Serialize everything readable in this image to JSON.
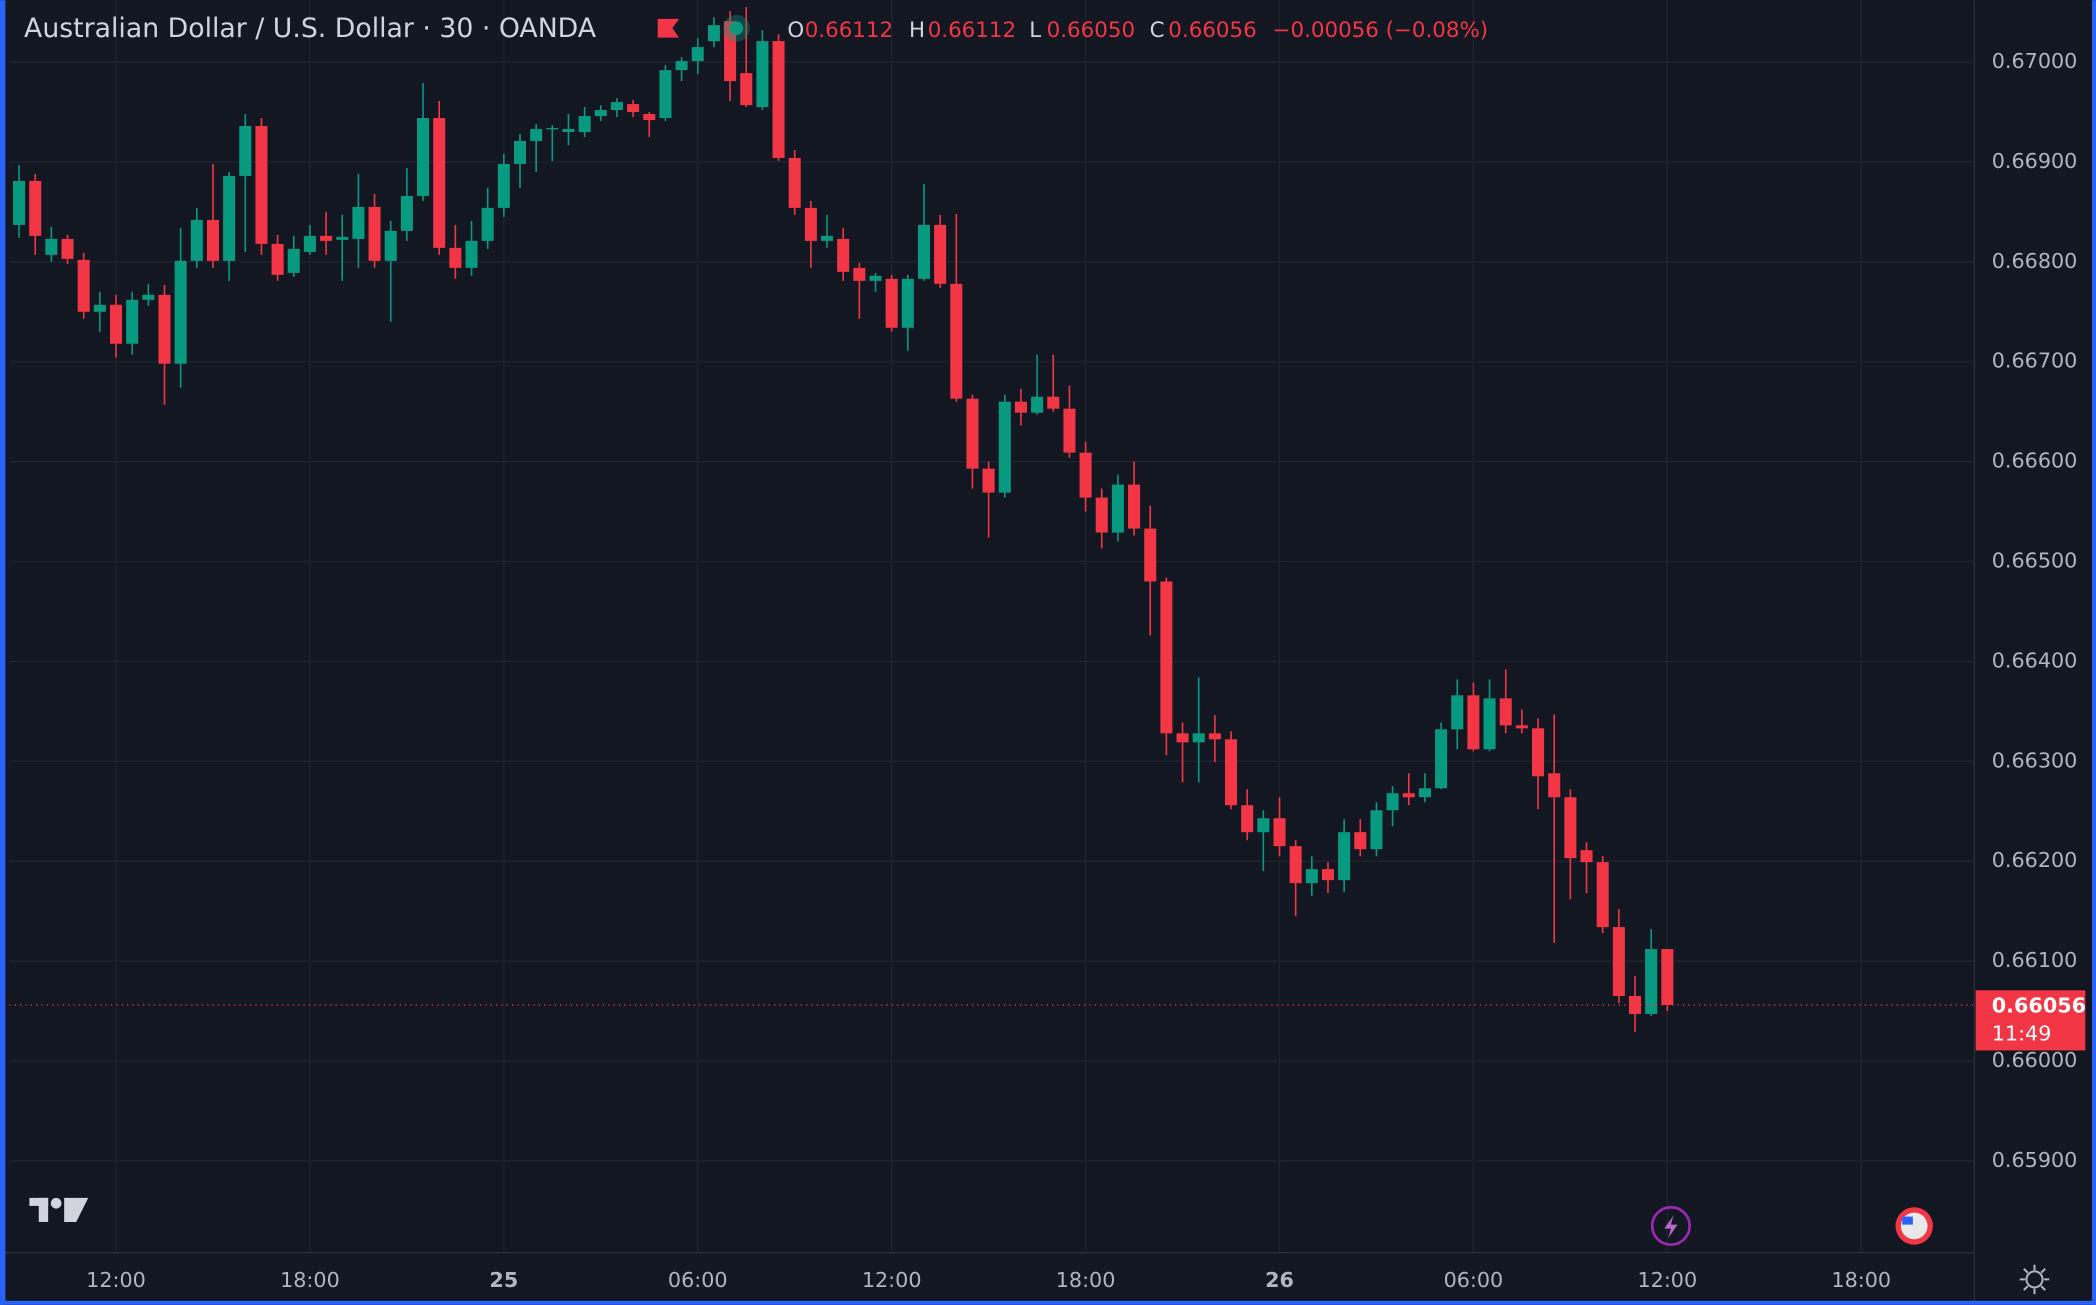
{
  "chart_data": {
    "type": "candlestick",
    "title": "Australian Dollar / U.S. Dollar · 30 · OANDA",
    "legend": {
      "o_key": "O",
      "o": "0.66112",
      "h_key": "H",
      "h": "0.66112",
      "l_key": "L",
      "l": "0.66050",
      "c_key": "C",
      "c": "0.66056",
      "change": "−0.00056 (−0.08%)"
    },
    "countdown": "11:49",
    "up_color": "#089981",
    "down_color": "#f23645",
    "grid": true,
    "xlim": [
      -0.6,
      121
    ],
    "xticks": [
      {
        "value": 6,
        "label": "12:00"
      },
      {
        "value": 18,
        "label": "18:00"
      },
      {
        "value": 30,
        "label": "25"
      },
      {
        "value": 42,
        "label": "06:00"
      },
      {
        "value": 54,
        "label": "12:00"
      },
      {
        "value": 66,
        "label": "18:00"
      },
      {
        "value": 78,
        "label": "26"
      },
      {
        "value": 90,
        "label": "06:00"
      },
      {
        "value": 102,
        "label": "12:00"
      },
      {
        "value": 114,
        "label": "18:00"
      }
    ],
    "ylim": [
      0.65808,
      0.67062
    ],
    "yticks": [
      {
        "value": 0.659,
        "label": "0.65900"
      },
      {
        "value": 0.66,
        "label": "0.66000"
      },
      {
        "value": 0.661,
        "label": "0.66100"
      },
      {
        "value": 0.662,
        "label": "0.66200"
      },
      {
        "value": 0.663,
        "label": "0.66300"
      },
      {
        "value": 0.664,
        "label": "0.66400"
      },
      {
        "value": 0.665,
        "label": "0.66500"
      },
      {
        "value": 0.666,
        "label": "0.66600"
      },
      {
        "value": 0.667,
        "label": "0.66700"
      },
      {
        "value": 0.668,
        "label": "0.66800"
      },
      {
        "value": 0.669,
        "label": "0.66900"
      },
      {
        "value": 0.67,
        "label": "0.67000"
      }
    ],
    "open": [
      0.66837,
      0.66881,
      0.66807,
      0.66823,
      0.66802,
      0.6675,
      0.66757,
      0.66718,
      0.66762,
      0.66767,
      0.66698,
      0.66801,
      0.66842,
      0.66801,
      0.66886,
      0.66936,
      0.66818,
      0.66789,
      0.6681,
      0.66826,
      0.66822,
      0.66823,
      0.66855,
      0.66801,
      0.66831,
      0.66866,
      0.66944,
      0.66814,
      0.66794,
      0.66821,
      0.66854,
      0.66898,
      0.66921,
      0.66933,
      0.6693,
      0.6693,
      0.66946,
      0.66952,
      0.66958,
      0.66948,
      0.66944,
      0.66992,
      0.67001,
      0.67021,
      0.67041,
      0.66989,
      0.66955,
      0.67021,
      0.66904,
      0.66854,
      0.66821,
      0.66823,
      0.66794,
      0.66781,
      0.66783,
      0.66734,
      0.66783,
      0.66837,
      0.66778,
      0.66663,
      0.66593,
      0.66569,
      0.6666,
      0.66649,
      0.66665,
      0.66653,
      0.66609,
      0.66564,
      0.66529,
      0.66577,
      0.66533,
      0.6648,
      0.66328,
      0.66319,
      0.66328,
      0.66322,
      0.66256,
      0.66229,
      0.66243,
      0.66215,
      0.66178,
      0.66192,
      0.66181,
      0.66229,
      0.66212,
      0.66251,
      0.66268,
      0.66264,
      0.66273,
      0.66332,
      0.66366,
      0.66312,
      0.66363,
      0.66336,
      0.66333,
      0.66288,
      0.66264,
      0.66211,
      0.66199,
      0.66134,
      0.66065,
      0.66047,
      0.66112
    ],
    "high": [
      0.66897,
      0.66888,
      0.66835,
      0.66827,
      0.66809,
      0.6677,
      0.66767,
      0.6677,
      0.66778,
      0.66777,
      0.66834,
      0.66854,
      0.66898,
      0.6689,
      0.66948,
      0.66944,
      0.66827,
      0.66826,
      0.66837,
      0.6685,
      0.66847,
      0.66888,
      0.66868,
      0.66841,
      0.66894,
      0.66979,
      0.66961,
      0.66837,
      0.66841,
      0.66874,
      0.66908,
      0.66928,
      0.66938,
      0.66937,
      0.66948,
      0.66955,
      0.66957,
      0.66964,
      0.66962,
      0.6695,
      0.66997,
      0.67005,
      0.67024,
      0.67045,
      0.67051,
      0.67055,
      0.67032,
      0.67028,
      0.66912,
      0.66861,
      0.66847,
      0.66834,
      0.66799,
      0.66789,
      0.66787,
      0.66787,
      0.66878,
      0.66847,
      0.66848,
      0.66667,
      0.666,
      0.66667,
      0.66673,
      0.66707,
      0.66707,
      0.66676,
      0.6662,
      0.66573,
      0.66587,
      0.666,
      0.66556,
      0.66484,
      0.66339,
      0.66384,
      0.66346,
      0.6633,
      0.66272,
      0.66251,
      0.66264,
      0.66221,
      0.66205,
      0.66199,
      0.66242,
      0.66242,
      0.66259,
      0.66275,
      0.66288,
      0.66288,
      0.66339,
      0.66382,
      0.66379,
      0.66382,
      0.66392,
      0.66352,
      0.66343,
      0.66347,
      0.66272,
      0.66219,
      0.66205,
      0.66152,
      0.66085,
      0.66132,
      0.66112
    ],
    "low": [
      0.66824,
      0.66807,
      0.668,
      0.66798,
      0.66743,
      0.6673,
      0.66704,
      0.66707,
      0.66756,
      0.66657,
      0.66674,
      0.66794,
      0.66794,
      0.66781,
      0.6681,
      0.66807,
      0.66781,
      0.66785,
      0.66807,
      0.66807,
      0.66781,
      0.66794,
      0.66794,
      0.6674,
      0.66821,
      0.66861,
      0.66807,
      0.66783,
      0.66786,
      0.66813,
      0.66845,
      0.66874,
      0.6689,
      0.66901,
      0.66917,
      0.66925,
      0.66941,
      0.66945,
      0.66945,
      0.66925,
      0.66941,
      0.66981,
      0.66988,
      0.67015,
      0.66961,
      0.66955,
      0.66952,
      0.66901,
      0.66847,
      0.66794,
      0.66814,
      0.66781,
      0.66743,
      0.6677,
      0.6673,
      0.66711,
      0.66781,
      0.66774,
      0.6666,
      0.66573,
      0.66524,
      0.66564,
      0.66636,
      0.66647,
      0.6665,
      0.66604,
      0.6655,
      0.66513,
      0.6652,
      0.66526,
      0.66426,
      0.66306,
      0.66279,
      0.66279,
      0.66299,
      0.66252,
      0.66221,
      0.6619,
      0.66205,
      0.66145,
      0.66165,
      0.66168,
      0.66169,
      0.66205,
      0.66205,
      0.66235,
      0.66256,
      0.66259,
      0.66272,
      0.66312,
      0.6631,
      0.6631,
      0.66328,
      0.66328,
      0.66252,
      0.66118,
      0.66162,
      0.66168,
      0.66128,
      0.66058,
      0.66029,
      0.66045,
      0.6605
    ],
    "close": [
      0.66881,
      0.66826,
      0.66823,
      0.66803,
      0.6675,
      0.66757,
      0.66718,
      0.66762,
      0.66767,
      0.66698,
      0.66801,
      0.66842,
      0.66801,
      0.66886,
      0.66936,
      0.66818,
      0.66787,
      0.66813,
      0.66826,
      0.66821,
      0.66825,
      0.66855,
      0.66801,
      0.66831,
      0.66866,
      0.66944,
      0.66814,
      0.66794,
      0.66821,
      0.66854,
      0.66898,
      0.66921,
      0.66933,
      0.66934,
      0.66933,
      0.66946,
      0.66952,
      0.6696,
      0.6695,
      0.66942,
      0.66992,
      0.67001,
      0.67015,
      0.67037,
      0.66981,
      0.66957,
      0.67021,
      0.66904,
      0.66854,
      0.66821,
      0.66826,
      0.6679,
      0.66781,
      0.66786,
      0.66734,
      0.66783,
      0.66837,
      0.66778,
      0.66663,
      0.66593,
      0.66569,
      0.6666,
      0.66649,
      0.66665,
      0.66653,
      0.66609,
      0.66564,
      0.66529,
      0.66577,
      0.66533,
      0.6648,
      0.66328,
      0.66319,
      0.66328,
      0.66322,
      0.66256,
      0.66229,
      0.66243,
      0.66215,
      0.66178,
      0.66192,
      0.66181,
      0.66229,
      0.66212,
      0.66251,
      0.66268,
      0.66264,
      0.66273,
      0.66332,
      0.66366,
      0.66312,
      0.66363,
      0.66336,
      0.66333,
      0.66285,
      0.66264,
      0.66203,
      0.66199,
      0.66134,
      0.66065,
      0.66047,
      0.66112,
      0.66056
    ]
  }
}
